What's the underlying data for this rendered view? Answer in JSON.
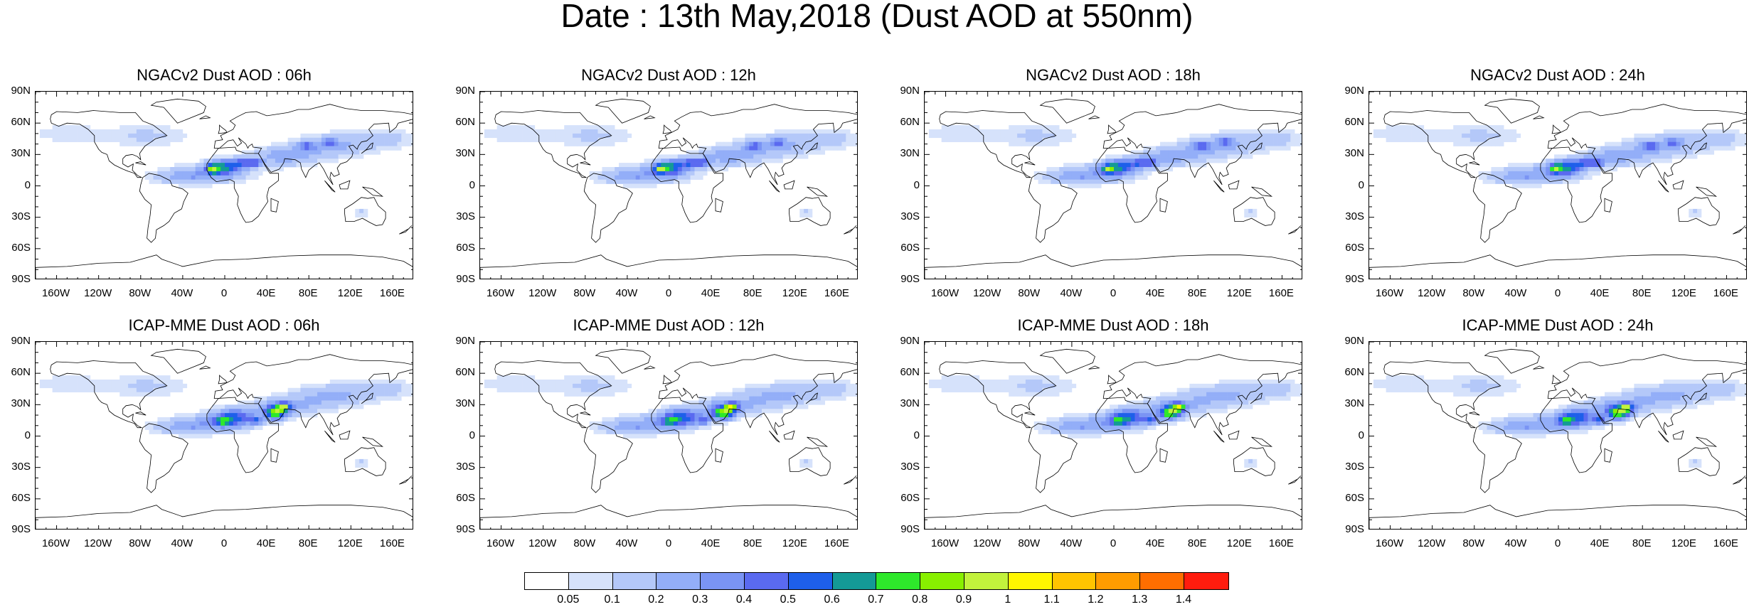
{
  "title": "Date : 13th May,2018 (Dust AOD at 550nm)",
  "panels": [
    {
      "title": "NGACv2 Dust AOD : 06h",
      "model": "NGACv2"
    },
    {
      "title": "NGACv2 Dust AOD : 12h",
      "model": "NGACv2"
    },
    {
      "title": "NGACv2 Dust AOD : 18h",
      "model": "NGACv2"
    },
    {
      "title": "NGACv2 Dust AOD : 24h",
      "model": "NGACv2"
    },
    {
      "title": "ICAP-MME Dust AOD : 06h",
      "model": "ICAP-MME"
    },
    {
      "title": "ICAP-MME Dust AOD : 12h",
      "model": "ICAP-MME"
    },
    {
      "title": "ICAP-MME Dust AOD : 18h",
      "model": "ICAP-MME"
    },
    {
      "title": "ICAP-MME Dust AOD : 24h",
      "model": "ICAP-MME"
    }
  ],
  "lat_labels": [
    "90N",
    "60N",
    "30N",
    "0",
    "30S",
    "60S",
    "90S"
  ],
  "lon_labels": [
    "160W",
    "120W",
    "80W",
    "40W",
    "0",
    "40E",
    "80E",
    "120E",
    "160E"
  ],
  "colorbar": {
    "labels": [
      "0.05",
      "0.1",
      "0.2",
      "0.3",
      "0.4",
      "0.5",
      "0.6",
      "0.7",
      "0.8",
      "0.9",
      "1",
      "1.1",
      "1.2",
      "1.3",
      "1.4"
    ],
    "colors": [
      "#ffffff",
      "#d6e2fb",
      "#b4c8f9",
      "#93aef8",
      "#7a94f4",
      "#5a6af0",
      "#1e5fea",
      "#149a96",
      "#2ee82b",
      "#88f000",
      "#c2f23c",
      "#fff700",
      "#ffc400",
      "#ff9c00",
      "#ff6e00",
      "#ff1c0e"
    ]
  }
}
